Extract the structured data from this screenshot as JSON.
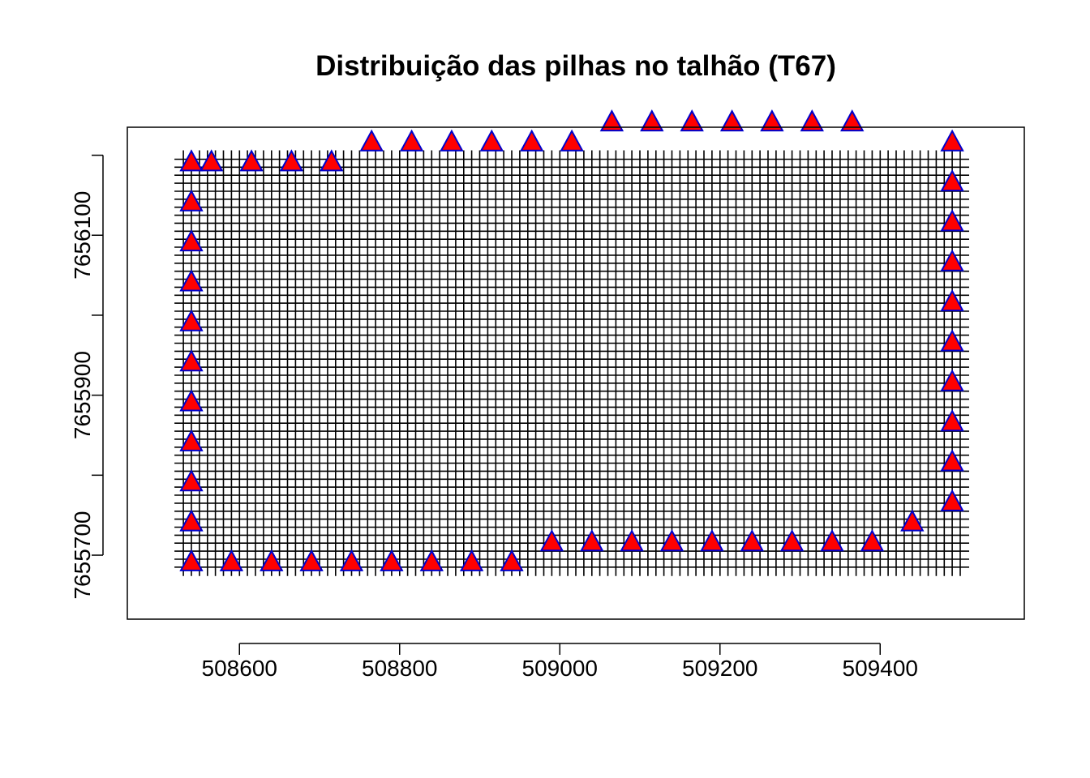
{
  "chart_data": {
    "type": "scatter",
    "title": "Distribuição das pilhas no talhão (T67)",
    "xlabel": "",
    "ylabel": "",
    "xlim": [
      508460,
      509580
    ],
    "ylim": [
      7655620,
      7656235
    ],
    "x_ticks": [
      508600,
      508800,
      509000,
      509200,
      509400
    ],
    "y_ticks": [
      7655700,
      7655800,
      7655900,
      7656000,
      7656100,
      7656200
    ],
    "y_tick_labels": [
      "7655700",
      "",
      "7655900",
      "",
      "7656100",
      ""
    ],
    "grid": false,
    "legend": "none",
    "background_layer": {
      "type": "plus-marker grid",
      "spacing": 10,
      "x_range": [
        508530,
        509500
      ],
      "y_range": [
        7655685,
        7656195
      ]
    },
    "series": [
      {
        "marker": "filled-triangle",
        "fill": "#ff0000",
        "stroke": "#0000cc",
        "points": [
          [
            508540,
            7655690
          ],
          [
            508590,
            7655690
          ],
          [
            508640,
            7655690
          ],
          [
            508690,
            7655690
          ],
          [
            508740,
            7655690
          ],
          [
            508790,
            7655690
          ],
          [
            508840,
            7655690
          ],
          [
            508890,
            7655690
          ],
          [
            508940,
            7655690
          ],
          [
            508990,
            7655715
          ],
          [
            509040,
            7655715
          ],
          [
            509090,
            7655715
          ],
          [
            509140,
            7655715
          ],
          [
            509190,
            7655715
          ],
          [
            509240,
            7655715
          ],
          [
            509290,
            7655715
          ],
          [
            509340,
            7655715
          ],
          [
            509390,
            7655715
          ],
          [
            509440,
            7655740
          ],
          [
            508540,
            7655740
          ],
          [
            508540,
            7655790
          ],
          [
            508540,
            7655840
          ],
          [
            508540,
            7655890
          ],
          [
            508540,
            7655940
          ],
          [
            508540,
            7655990
          ],
          [
            508540,
            7656040
          ],
          [
            508540,
            7656090
          ],
          [
            508540,
            7656140
          ],
          [
            508540,
            7656190
          ],
          [
            508565,
            7656190
          ],
          [
            508615,
            7656190
          ],
          [
            508665,
            7656190
          ],
          [
            508715,
            7656190
          ],
          [
            508765,
            7656215
          ],
          [
            508815,
            7656215
          ],
          [
            508865,
            7656215
          ],
          [
            508915,
            7656215
          ],
          [
            508965,
            7656215
          ],
          [
            509015,
            7656215
          ],
          [
            509065,
            7656240
          ],
          [
            509115,
            7656240
          ],
          [
            509165,
            7656240
          ],
          [
            509215,
            7656240
          ],
          [
            509265,
            7656240
          ],
          [
            509315,
            7656240
          ],
          [
            509365,
            7656240
          ],
          [
            509490,
            7655765
          ],
          [
            509490,
            7655815
          ],
          [
            509490,
            7655865
          ],
          [
            509490,
            7655915
          ],
          [
            509490,
            7655965
          ],
          [
            509490,
            7656015
          ],
          [
            509490,
            7656065
          ],
          [
            509490,
            7656115
          ],
          [
            509490,
            7656165
          ],
          [
            509490,
            7656215
          ]
        ]
      }
    ]
  }
}
